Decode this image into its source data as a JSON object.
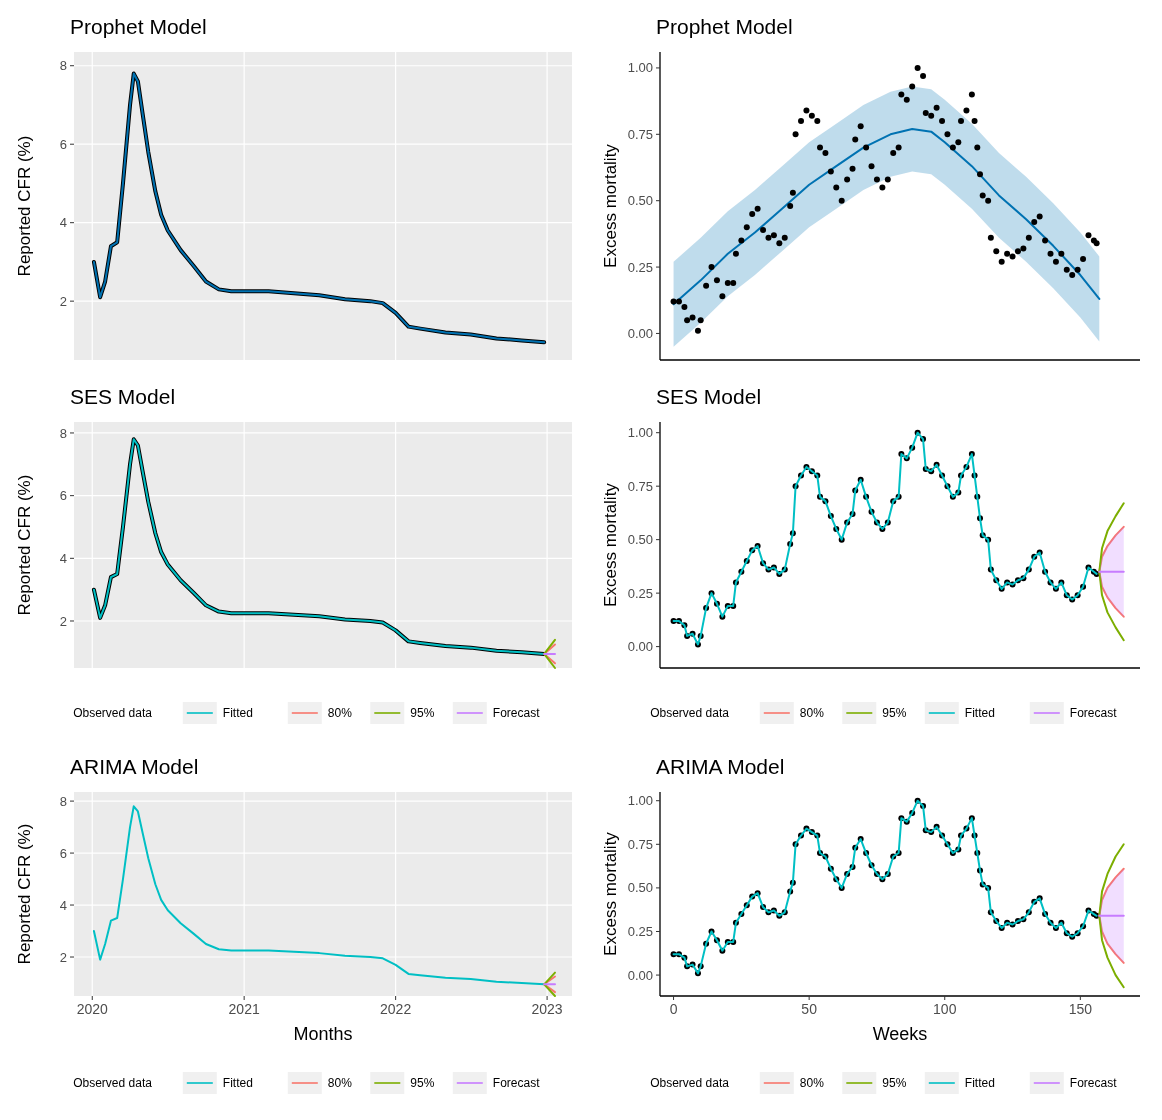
{
  "chart_data": [
    {
      "type": "line",
      "title": "Prophet Model",
      "ylabel": "Reported CFR (%)",
      "grid": true,
      "legend": false,
      "tick_labels": "y",
      "xlim": [
        "2019-11-18",
        "2023-03-02"
      ],
      "ylim": [
        0.5,
        8.35
      ],
      "xticks": [
        {
          "value": "2020-01-01",
          "label": null
        },
        {
          "value": "2021-01-01",
          "label": null
        },
        {
          "value": "2022-01-01",
          "label": null
        },
        {
          "value": "2023-01-01",
          "label": null
        }
      ],
      "yticks": [
        2,
        4,
        6,
        8
      ],
      "x": [
        "2020-01-05",
        "2020-01-20",
        "2020-02-01",
        "2020-02-15",
        "2020-03-01",
        "2020-03-15",
        "2020-04-01",
        "2020-04-10",
        "2020-04-20",
        "2020-05-01",
        "2020-05-15",
        "2020-06-01",
        "2020-06-15",
        "2020-07-01",
        "2020-08-01",
        "2020-09-01",
        "2020-10-01",
        "2020-11-01",
        "2020-12-01",
        "2021-01-01",
        "2021-03-01",
        "2021-05-01",
        "2021-07-01",
        "2021-09-01",
        "2021-11-01",
        "2021-12-01",
        "2022-01-01",
        "2022-02-01",
        "2022-03-01",
        "2022-05-01",
        "2022-07-01",
        "2022-09-01",
        "2022-11-01",
        "2022-12-25"
      ],
      "series": [
        {
          "color": "#000000",
          "values": [
            3.0,
            2.1,
            2.5,
            3.4,
            3.5,
            5.0,
            7.0,
            7.8,
            7.6,
            6.8,
            5.8,
            4.8,
            4.2,
            3.8,
            3.3,
            2.9,
            2.5,
            2.3,
            2.25,
            2.25,
            2.25,
            2.2,
            2.15,
            2.05,
            2.0,
            1.95,
            1.7,
            1.35,
            1.3,
            1.2,
            1.15,
            1.05,
            1.0,
            0.95
          ]
        },
        {
          "color": "#0072b2",
          "values": [
            3.0,
            2.1,
            2.5,
            3.4,
            3.5,
            5.0,
            7.0,
            7.8,
            7.6,
            6.8,
            5.8,
            4.8,
            4.2,
            3.8,
            3.3,
            2.9,
            2.5,
            2.3,
            2.25,
            2.25,
            2.25,
            2.2,
            2.15,
            2.05,
            2.0,
            1.95,
            1.7,
            1.35,
            1.3,
            1.2,
            1.15,
            1.05,
            1.0,
            0.95
          ]
        }
      ]
    },
    {
      "type": "line",
      "title": "Prophet Model",
      "ylabel": "Excess mortality",
      "grid": false,
      "legend": false,
      "tick_labels": "y",
      "xlim": [
        -5,
        172
      ],
      "ylim": [
        -0.1,
        1.06
      ],
      "yticks": [
        {
          "value": 0,
          "label": "0.00"
        },
        {
          "value": 0.25,
          "label": "0.25"
        },
        {
          "value": 0.5,
          "label": "0.50"
        },
        {
          "value": 0.75,
          "label": "0.75"
        },
        {
          "value": 1,
          "label": "1.00"
        }
      ],
      "x": [
        0,
        2,
        4,
        5,
        7,
        9,
        10,
        12,
        14,
        16,
        18,
        20,
        22,
        23,
        25,
        27,
        29,
        31,
        33,
        35,
        37,
        39,
        41,
        43,
        44,
        45,
        47,
        49,
        51,
        53,
        54,
        56,
        58,
        60,
        62,
        64,
        66,
        67,
        69,
        71,
        73,
        75,
        77,
        79,
        81,
        83,
        84,
        86,
        88,
        90,
        92,
        93,
        95,
        97,
        99,
        101,
        103,
        105,
        106,
        108,
        110,
        111,
        112,
        113,
        114,
        116,
        117,
        119,
        121,
        123,
        125,
        127,
        129,
        131,
        133,
        135,
        137,
        139,
        141,
        143,
        145,
        147,
        149,
        151,
        153,
        155,
        156
      ],
      "series": [
        {
          "color": "#0072b2",
          "x": [
            0,
            10,
            20,
            30,
            40,
            50,
            60,
            70,
            80,
            88,
            95,
            100,
            110,
            120,
            130,
            140,
            150,
            157
          ],
          "values": [
            0.11,
            0.2,
            0.3,
            0.38,
            0.47,
            0.56,
            0.63,
            0.7,
            0.75,
            0.77,
            0.76,
            0.72,
            0.63,
            0.52,
            0.43,
            0.33,
            0.22,
            0.13
          ],
          "lower": [
            -0.05,
            0.04,
            0.14,
            0.22,
            0.31,
            0.4,
            0.47,
            0.54,
            0.59,
            0.61,
            0.6,
            0.56,
            0.47,
            0.36,
            0.27,
            0.17,
            0.06,
            -0.03
          ],
          "upper": [
            0.27,
            0.36,
            0.46,
            0.54,
            0.63,
            0.72,
            0.79,
            0.86,
            0.91,
            0.93,
            0.92,
            0.88,
            0.79,
            0.68,
            0.59,
            0.49,
            0.38,
            0.29
          ]
        },
        {
          "type": "scatter",
          "marker": "circle",
          "color": "#000000",
          "values": [
            0.12,
            0.12,
            0.1,
            0.05,
            0.06,
            0.01,
            0.05,
            0.18,
            0.25,
            0.2,
            0.14,
            0.19,
            0.19,
            0.3,
            0.35,
            0.4,
            0.45,
            0.47,
            0.39,
            0.36,
            0.37,
            0.34,
            0.36,
            0.48,
            0.53,
            0.75,
            0.8,
            0.84,
            0.82,
            0.8,
            0.7,
            0.68,
            0.61,
            0.55,
            0.5,
            0.58,
            0.62,
            0.73,
            0.78,
            0.7,
            0.63,
            0.58,
            0.55,
            0.58,
            0.68,
            0.7,
            0.9,
            0.88,
            0.93,
            1.0,
            0.97,
            0.83,
            0.82,
            0.85,
            0.8,
            0.75,
            0.7,
            0.72,
            0.8,
            0.84,
            0.9,
            0.8,
            0.7,
            0.6,
            0.52,
            0.5,
            0.36,
            0.31,
            0.27,
            0.3,
            0.29,
            0.31,
            0.32,
            0.36,
            0.42,
            0.44,
            0.35,
            0.3,
            0.27,
            0.3,
            0.24,
            0.22,
            0.24,
            0.28,
            0.37,
            0.35,
            0.34
          ]
        }
      ]
    },
    {
      "type": "line",
      "title": "SES Model",
      "ylabel": "Reported CFR (%)",
      "grid": true,
      "legend": "bottom",
      "legend_title": "Observed data",
      "tick_labels": "y",
      "xlim": [
        "2019-11-18",
        "2023-03-02"
      ],
      "ylim": [
        0.5,
        8.35
      ],
      "xticks": [
        {
          "value": "2020-01-01",
          "label": null
        },
        {
          "value": "2021-01-01",
          "label": null
        },
        {
          "value": "2022-01-01",
          "label": null
        },
        {
          "value": "2023-01-01",
          "label": null
        }
      ],
      "yticks": [
        2,
        4,
        6,
        8
      ],
      "x": [
        "2020-01-05",
        "2020-01-20",
        "2020-02-01",
        "2020-02-15",
        "2020-03-01",
        "2020-03-15",
        "2020-04-01",
        "2020-04-10",
        "2020-04-20",
        "2020-05-01",
        "2020-05-15",
        "2020-06-01",
        "2020-06-15",
        "2020-07-01",
        "2020-08-01",
        "2020-09-01",
        "2020-10-01",
        "2020-11-01",
        "2020-12-01",
        "2021-01-01",
        "2021-03-01",
        "2021-05-01",
        "2021-07-01",
        "2021-09-01",
        "2021-11-01",
        "2021-12-01",
        "2022-01-01",
        "2022-02-01",
        "2022-03-01",
        "2022-05-01",
        "2022-07-01",
        "2022-09-01",
        "2022-11-01",
        "2022-12-25"
      ],
      "series": [
        {
          "color": "#000000",
          "values": [
            3.0,
            2.1,
            2.5,
            3.4,
            3.5,
            5.0,
            7.0,
            7.8,
            7.6,
            6.8,
            5.8,
            4.8,
            4.2,
            3.8,
            3.3,
            2.9,
            2.5,
            2.3,
            2.25,
            2.25,
            2.25,
            2.2,
            2.15,
            2.05,
            2.0,
            1.95,
            1.7,
            1.35,
            1.3,
            1.2,
            1.15,
            1.05,
            1.0,
            0.95
          ]
        },
        {
          "name": "Fitted",
          "color": "#00bfc4",
          "values": [
            3.0,
            2.1,
            2.5,
            3.4,
            3.5,
            5.0,
            7.0,
            7.8,
            7.6,
            6.8,
            5.8,
            4.8,
            4.2,
            3.8,
            3.3,
            2.9,
            2.5,
            2.3,
            2.25,
            2.25,
            2.25,
            2.2,
            2.15,
            2.05,
            2.0,
            1.95,
            1.7,
            1.35,
            1.3,
            1.2,
            1.15,
            1.05,
            1.0,
            0.95
          ]
        },
        {
          "name": "80%",
          "color": "#f8766d",
          "x": [
            "2023-01-20",
            "2022-12-25",
            "2023-01-20"
          ],
          "values": [
            1.25,
            0.95,
            0.65
          ]
        },
        {
          "name": "95%",
          "color": "#7cae00",
          "x": [
            "2023-01-20",
            "2022-12-25",
            "2023-01-20"
          ],
          "values": [
            1.4,
            0.95,
            0.5
          ]
        },
        {
          "name": "Forecast",
          "color": "#c77cff",
          "x": [
            "2022-12-25",
            "2023-01-20"
          ],
          "values": [
            0.95,
            0.95
          ]
        }
      ]
    },
    {
      "type": "line",
      "title": "SES Model",
      "ylabel": "Excess mortality",
      "grid": false,
      "legend": "bottom",
      "legend_title": "Observed data",
      "tick_labels": "y",
      "xlim": [
        -5,
        172
      ],
      "ylim": [
        -0.1,
        1.05
      ],
      "yticks": [
        {
          "value": 0,
          "label": "0.00"
        },
        {
          "value": 0.25,
          "label": "0.25"
        },
        {
          "value": 0.5,
          "label": "0.50"
        },
        {
          "value": 0.75,
          "label": "0.75"
        },
        {
          "value": 1,
          "label": "1.00"
        }
      ],
      "x": [
        0,
        2,
        4,
        5,
        7,
        9,
        10,
        12,
        14,
        16,
        18,
        20,
        22,
        23,
        25,
        27,
        29,
        31,
        33,
        35,
        37,
        39,
        41,
        43,
        44,
        45,
        47,
        49,
        51,
        53,
        54,
        56,
        58,
        60,
        62,
        64,
        66,
        67,
        69,
        71,
        73,
        75,
        77,
        79,
        81,
        83,
        84,
        86,
        88,
        90,
        92,
        93,
        95,
        97,
        99,
        101,
        103,
        105,
        106,
        108,
        110,
        111,
        112,
        113,
        114,
        116,
        117,
        119,
        121,
        123,
        125,
        127,
        129,
        131,
        133,
        135,
        137,
        139,
        141,
        143,
        145,
        147,
        149,
        151,
        153,
        155,
        156
      ],
      "series": [
        {
          "type": "scatter",
          "marker": "circle",
          "color": "#000000",
          "values": [
            0.12,
            0.12,
            0.1,
            0.05,
            0.06,
            0.01,
            0.05,
            0.18,
            0.25,
            0.2,
            0.14,
            0.19,
            0.19,
            0.3,
            0.35,
            0.4,
            0.45,
            0.47,
            0.39,
            0.36,
            0.37,
            0.34,
            0.36,
            0.48,
            0.53,
            0.75,
            0.8,
            0.84,
            0.82,
            0.8,
            0.7,
            0.68,
            0.61,
            0.55,
            0.5,
            0.58,
            0.62,
            0.73,
            0.78,
            0.7,
            0.63,
            0.58,
            0.55,
            0.58,
            0.68,
            0.7,
            0.9,
            0.88,
            0.93,
            1.0,
            0.97,
            0.83,
            0.82,
            0.85,
            0.8,
            0.75,
            0.7,
            0.72,
            0.8,
            0.84,
            0.9,
            0.8,
            0.7,
            0.6,
            0.52,
            0.5,
            0.36,
            0.31,
            0.27,
            0.3,
            0.29,
            0.31,
            0.32,
            0.36,
            0.42,
            0.44,
            0.35,
            0.3,
            0.27,
            0.3,
            0.24,
            0.22,
            0.24,
            0.28,
            0.37,
            0.35,
            0.34
          ]
        },
        {
          "name": "80%",
          "color": "#f8766d",
          "x": [
            166,
            163,
            160,
            158,
            157,
            158,
            160,
            163,
            166
          ],
          "values": [
            0.56,
            0.52,
            0.47,
            0.42,
            0.35,
            0.28,
            0.23,
            0.18,
            0.14
          ]
        },
        {
          "name": "95%",
          "color": "#7cae00",
          "x": [
            166,
            163,
            160,
            158,
            157,
            158,
            160,
            163,
            166
          ],
          "values": [
            0.67,
            0.61,
            0.54,
            0.46,
            0.35,
            0.24,
            0.16,
            0.09,
            0.03
          ]
        },
        {
          "name": "Fitted",
          "color": "#00bfc4",
          "values": [
            0.12,
            0.12,
            0.1,
            0.05,
            0.06,
            0.01,
            0.05,
            0.18,
            0.25,
            0.2,
            0.14,
            0.19,
            0.19,
            0.3,
            0.35,
            0.4,
            0.45,
            0.47,
            0.39,
            0.36,
            0.37,
            0.34,
            0.36,
            0.48,
            0.53,
            0.75,
            0.8,
            0.84,
            0.82,
            0.8,
            0.7,
            0.68,
            0.61,
            0.55,
            0.5,
            0.58,
            0.62,
            0.73,
            0.78,
            0.7,
            0.63,
            0.58,
            0.55,
            0.58,
            0.68,
            0.7,
            0.9,
            0.88,
            0.93,
            1.0,
            0.97,
            0.83,
            0.82,
            0.85,
            0.8,
            0.75,
            0.7,
            0.72,
            0.8,
            0.84,
            0.9,
            0.8,
            0.7,
            0.6,
            0.52,
            0.5,
            0.36,
            0.31,
            0.27,
            0.3,
            0.29,
            0.31,
            0.32,
            0.36,
            0.42,
            0.44,
            0.35,
            0.3,
            0.27,
            0.3,
            0.24,
            0.22,
            0.24,
            0.28,
            0.37,
            0.35,
            0.34
          ]
        },
        {
          "name": "Forecast",
          "color": "#c77cff",
          "x": [
            157,
            158,
            160,
            163,
            166
          ],
          "values": [
            0.35,
            0.35,
            0.35,
            0.35,
            0.35
          ],
          "lower": [
            0.35,
            0.28,
            0.23,
            0.18,
            0.14
          ],
          "upper": [
            0.35,
            0.42,
            0.47,
            0.52,
            0.56
          ]
        }
      ]
    },
    {
      "type": "line",
      "title": "ARIMA Model",
      "xlabel": "Months",
      "ylabel": "Reported CFR (%)",
      "grid": true,
      "legend": "bottom",
      "legend_title": "Observed data",
      "xlim": [
        "2019-11-18",
        "2023-03-02"
      ],
      "ylim": [
        0.5,
        8.35
      ],
      "xticks": [
        {
          "value": "2020-01-01",
          "label": "2020"
        },
        {
          "value": "2021-01-01",
          "label": "2021"
        },
        {
          "value": "2022-01-01",
          "label": "2022"
        },
        {
          "value": "2023-01-01",
          "label": "2023"
        }
      ],
      "yticks": [
        2,
        4,
        6,
        8
      ],
      "x": [
        "2020-01-05",
        "2020-01-20",
        "2020-02-01",
        "2020-02-15",
        "2020-03-01",
        "2020-03-15",
        "2020-04-01",
        "2020-04-10",
        "2020-04-20",
        "2020-05-01",
        "2020-05-15",
        "2020-06-01",
        "2020-06-15",
        "2020-07-01",
        "2020-08-01",
        "2020-09-01",
        "2020-10-01",
        "2020-11-01",
        "2020-12-01",
        "2021-01-01",
        "2021-03-01",
        "2021-05-01",
        "2021-07-01",
        "2021-09-01",
        "2021-11-01",
        "2021-12-01",
        "2022-01-01",
        "2022-02-01",
        "2022-03-01",
        "2022-05-01",
        "2022-07-01",
        "2022-09-01",
        "2022-11-01",
        "2022-12-25"
      ],
      "series": [
        {
          "name": "Fitted",
          "color": "#00bfc4",
          "values": [
            3.0,
            1.9,
            2.5,
            3.4,
            3.5,
            5.0,
            7.0,
            7.8,
            7.6,
            6.8,
            5.8,
            4.8,
            4.2,
            3.8,
            3.3,
            2.9,
            2.5,
            2.3,
            2.25,
            2.25,
            2.25,
            2.2,
            2.15,
            2.05,
            2.0,
            1.95,
            1.7,
            1.35,
            1.3,
            1.2,
            1.15,
            1.05,
            1.0,
            0.95
          ]
        },
        {
          "name": "80%",
          "color": "#f8766d",
          "x": [
            "2023-01-20",
            "2022-12-25",
            "2023-01-20"
          ],
          "values": [
            1.25,
            0.95,
            0.65
          ]
        },
        {
          "name": "95%",
          "color": "#7cae00",
          "x": [
            "2023-01-20",
            "2022-12-25",
            "2023-01-20"
          ],
          "values": [
            1.4,
            0.95,
            0.5
          ]
        },
        {
          "name": "Forecast",
          "color": "#c77cff",
          "x": [
            "2022-12-25",
            "2023-01-20"
          ],
          "values": [
            0.95,
            0.95
          ]
        }
      ]
    },
    {
      "type": "line",
      "title": "ARIMA Model",
      "xlabel": "Weeks",
      "ylabel": "Excess mortality",
      "grid": false,
      "legend": "bottom",
      "legend_title": "Observed data",
      "xlim": [
        -5,
        172
      ],
      "ylim": [
        -0.12,
        1.05
      ],
      "xticks": [
        0,
        50,
        100,
        150
      ],
      "yticks": [
        {
          "value": 0,
          "label": "0.00"
        },
        {
          "value": 0.25,
          "label": "0.25"
        },
        {
          "value": 0.5,
          "label": "0.50"
        },
        {
          "value": 0.75,
          "label": "0.75"
        },
        {
          "value": 1,
          "label": "1.00"
        }
      ],
      "x": [
        0,
        2,
        4,
        5,
        7,
        9,
        10,
        12,
        14,
        16,
        18,
        20,
        22,
        23,
        25,
        27,
        29,
        31,
        33,
        35,
        37,
        39,
        41,
        43,
        44,
        45,
        47,
        49,
        51,
        53,
        54,
        56,
        58,
        60,
        62,
        64,
        66,
        67,
        69,
        71,
        73,
        75,
        77,
        79,
        81,
        83,
        84,
        86,
        88,
        90,
        92,
        93,
        95,
        97,
        99,
        101,
        103,
        105,
        106,
        108,
        110,
        111,
        112,
        113,
        114,
        116,
        117,
        119,
        121,
        123,
        125,
        127,
        129,
        131,
        133,
        135,
        137,
        139,
        141,
        143,
        145,
        147,
        149,
        151,
        153,
        155,
        156
      ],
      "series": [
        {
          "type": "scatter",
          "marker": "circle",
          "color": "#000000",
          "values": [
            0.12,
            0.12,
            0.1,
            0.05,
            0.06,
            0.01,
            0.05,
            0.18,
            0.25,
            0.2,
            0.14,
            0.19,
            0.19,
            0.3,
            0.35,
            0.4,
            0.45,
            0.47,
            0.39,
            0.36,
            0.37,
            0.34,
            0.36,
            0.48,
            0.53,
            0.75,
            0.8,
            0.84,
            0.82,
            0.8,
            0.7,
            0.68,
            0.61,
            0.55,
            0.5,
            0.58,
            0.62,
            0.73,
            0.78,
            0.7,
            0.63,
            0.58,
            0.55,
            0.58,
            0.68,
            0.7,
            0.9,
            0.88,
            0.93,
            1.0,
            0.97,
            0.83,
            0.82,
            0.85,
            0.8,
            0.75,
            0.7,
            0.72,
            0.8,
            0.84,
            0.9,
            0.8,
            0.7,
            0.6,
            0.52,
            0.5,
            0.36,
            0.31,
            0.27,
            0.3,
            0.29,
            0.31,
            0.32,
            0.36,
            0.42,
            0.44,
            0.35,
            0.3,
            0.27,
            0.3,
            0.24,
            0.22,
            0.24,
            0.28,
            0.37,
            0.35,
            0.34
          ]
        },
        {
          "name": "80%",
          "color": "#f8766d",
          "x": [
            166,
            163,
            160,
            158,
            157,
            158,
            160,
            163,
            166
          ],
          "values": [
            0.61,
            0.56,
            0.5,
            0.43,
            0.34,
            0.25,
            0.18,
            0.12,
            0.07
          ]
        },
        {
          "name": "95%",
          "color": "#7cae00",
          "x": [
            166,
            163,
            160,
            158,
            157,
            158,
            160,
            163,
            166
          ],
          "values": [
            0.75,
            0.68,
            0.58,
            0.48,
            0.34,
            0.2,
            0.1,
            0.0,
            -0.07
          ]
        },
        {
          "name": "Fitted",
          "color": "#00bfc4",
          "values": [
            0.12,
            0.12,
            0.1,
            0.05,
            0.06,
            0.01,
            0.05,
            0.18,
            0.25,
            0.2,
            0.14,
            0.19,
            0.19,
            0.3,
            0.35,
            0.4,
            0.45,
            0.47,
            0.39,
            0.36,
            0.37,
            0.34,
            0.36,
            0.48,
            0.53,
            0.75,
            0.8,
            0.84,
            0.82,
            0.8,
            0.7,
            0.68,
            0.61,
            0.55,
            0.5,
            0.58,
            0.62,
            0.73,
            0.78,
            0.7,
            0.63,
            0.58,
            0.55,
            0.58,
            0.68,
            0.7,
            0.9,
            0.88,
            0.93,
            1.0,
            0.97,
            0.83,
            0.82,
            0.85,
            0.8,
            0.75,
            0.7,
            0.72,
            0.8,
            0.84,
            0.9,
            0.8,
            0.7,
            0.6,
            0.52,
            0.5,
            0.36,
            0.31,
            0.27,
            0.3,
            0.29,
            0.31,
            0.32,
            0.36,
            0.42,
            0.44,
            0.35,
            0.3,
            0.27,
            0.3,
            0.24,
            0.22,
            0.24,
            0.28,
            0.37,
            0.35,
            0.34
          ]
        },
        {
          "name": "Forecast",
          "color": "#c77cff",
          "x": [
            157,
            158,
            160,
            163,
            166
          ],
          "values": [
            0.34,
            0.34,
            0.34,
            0.34,
            0.34
          ],
          "lower": [
            0.34,
            0.25,
            0.18,
            0.12,
            0.07
          ],
          "upper": [
            0.34,
            0.43,
            0.5,
            0.56,
            0.61
          ]
        }
      ]
    }
  ]
}
